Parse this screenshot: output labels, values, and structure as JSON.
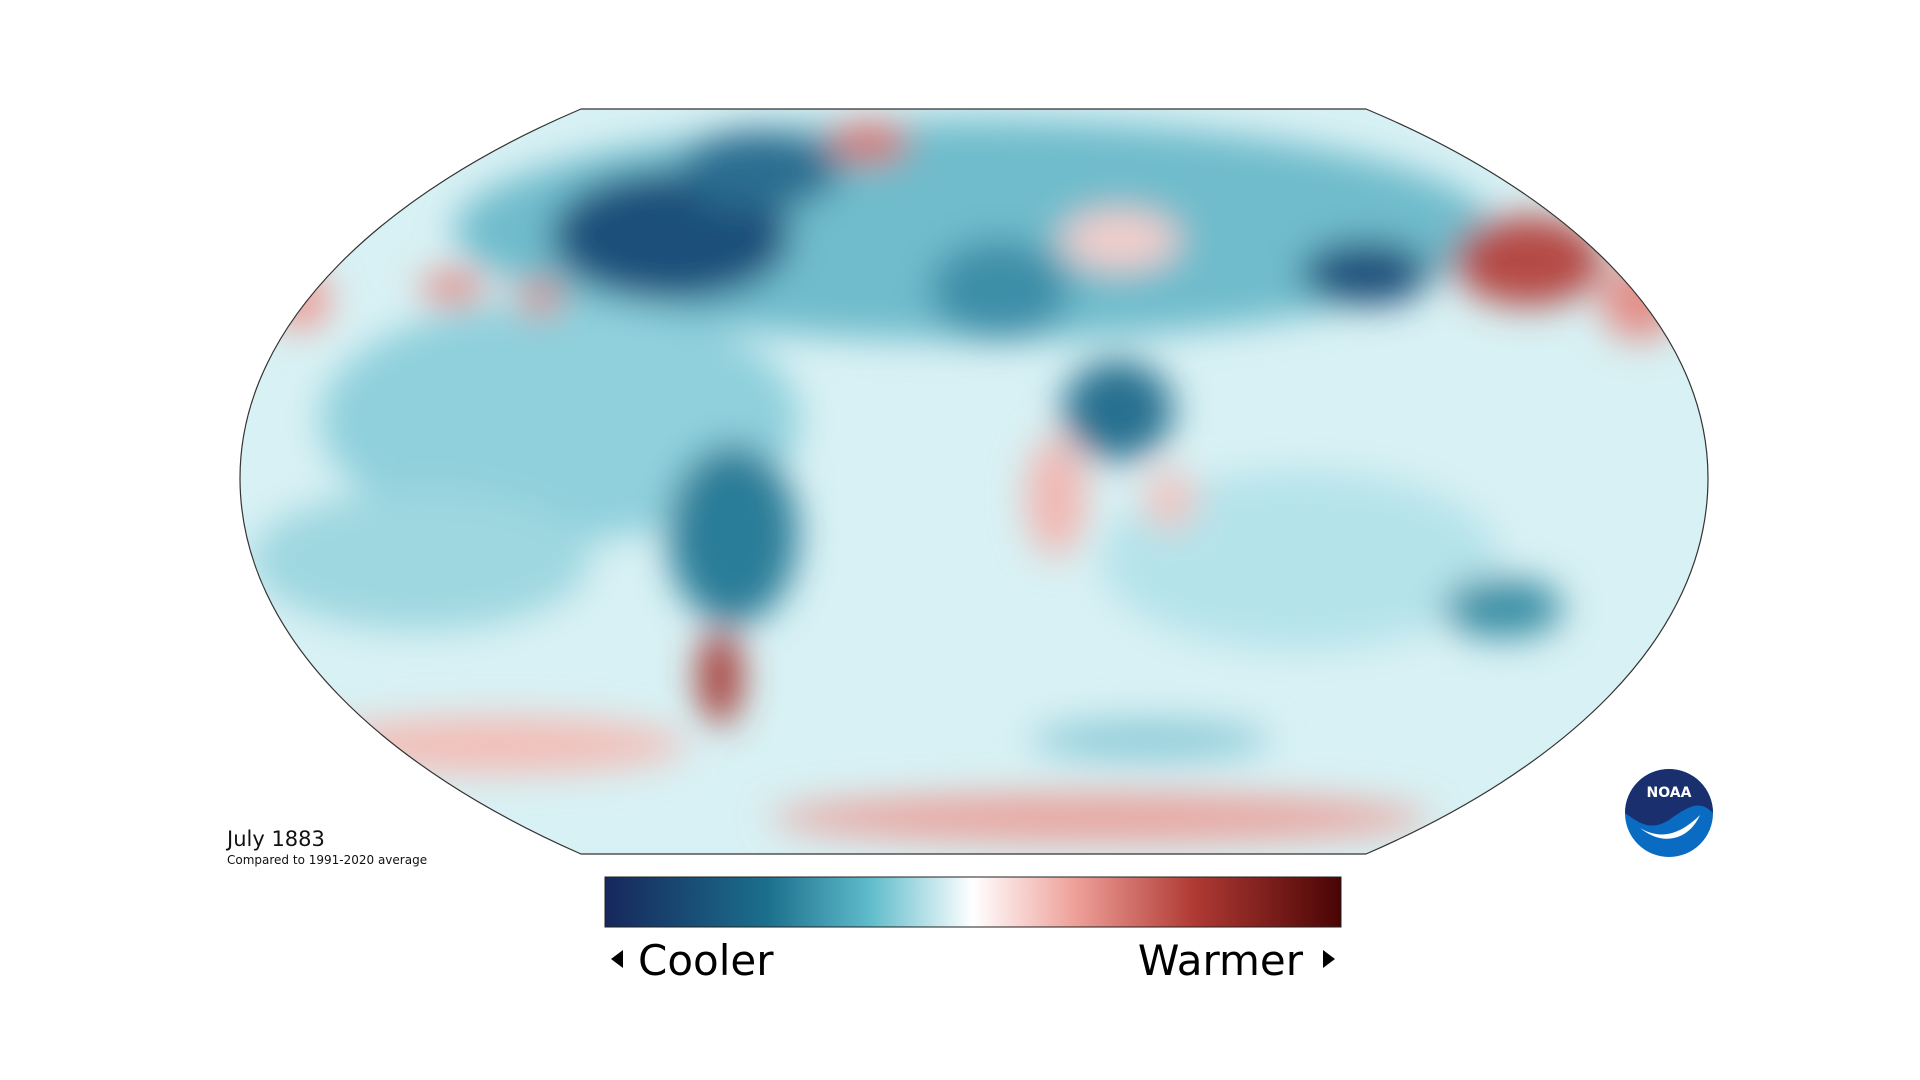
{
  "map": {
    "title": "July 1883",
    "subtitle": "Compared to 1991-2020 average"
  },
  "legend": {
    "low_label": "Cooler",
    "high_label": "Warmer"
  },
  "logo": {
    "text": "NOAA"
  }
}
